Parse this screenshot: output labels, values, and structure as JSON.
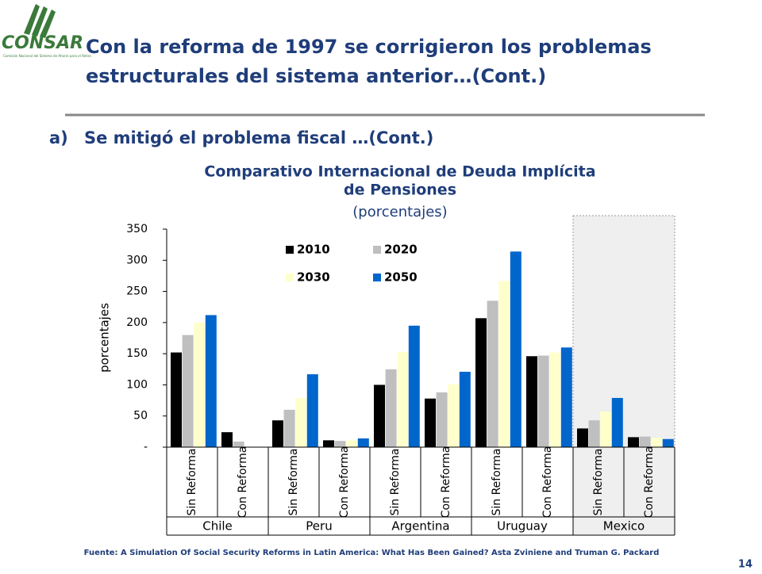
{
  "header": {
    "logo": "CONSAR",
    "logo_subtitle": "Comisión Nacional del Sistema de Ahorro para el Retiro",
    "title_line1": "Con la reforma de 1997 se corrigieron los problemas",
    "title_line2": "estructurales del sistema anterior…(Cont.)"
  },
  "section": {
    "marker": "a)",
    "text": "Se mitigó el problema fiscal …(Cont.)"
  },
  "chart_data": {
    "type": "bar",
    "title_line1": "Comparativo Internacional de Deuda Implícita",
    "title_line2": "de Pensiones",
    "subtitle": "(porcentajes)",
    "y_label": "porcentajes",
    "categories": [
      "Sin Reforma",
      "Con Reforma",
      "Sin Reforma",
      "Con Reforma",
      "Sin Reforma",
      "Con Reforma",
      "Sin Reforma",
      "Con Reforma",
      "Sin Reforma",
      "Con Reforma"
    ],
    "groups": [
      "Chile",
      "Peru",
      "Argentina",
      "Uruguay",
      "Mexico"
    ],
    "series": [
      {
        "name": "2010",
        "color": "#000000",
        "values": [
          152,
          24,
          43,
          11,
          100,
          78,
          207,
          146,
          30,
          16
        ]
      },
      {
        "name": "2020",
        "color": "#bfbfbf",
        "values": [
          180,
          9,
          60,
          10,
          125,
          88,
          235,
          147,
          43,
          17
        ]
      },
      {
        "name": "2030",
        "color": "#ffffcc",
        "values": [
          200,
          0,
          79,
          11,
          153,
          101,
          267,
          152,
          57,
          15
        ]
      },
      {
        "name": "2050",
        "color": "#0066cc",
        "values": [
          212,
          0,
          117,
          14,
          195,
          121,
          314,
          160,
          79,
          13
        ]
      }
    ],
    "ylim": [
      0,
      350
    ],
    "yticks": [
      {
        "value": 0,
        "label": "-"
      },
      50,
      100,
      150,
      200,
      250,
      300,
      350
    ],
    "highlight_group": "Mexico"
  },
  "footer": {
    "source": "Fuente: A Simulation Of Social Security Reforms in Latin America: What Has Been Gained? Asta Zviniene and Truman G. Packard",
    "page": "14"
  }
}
